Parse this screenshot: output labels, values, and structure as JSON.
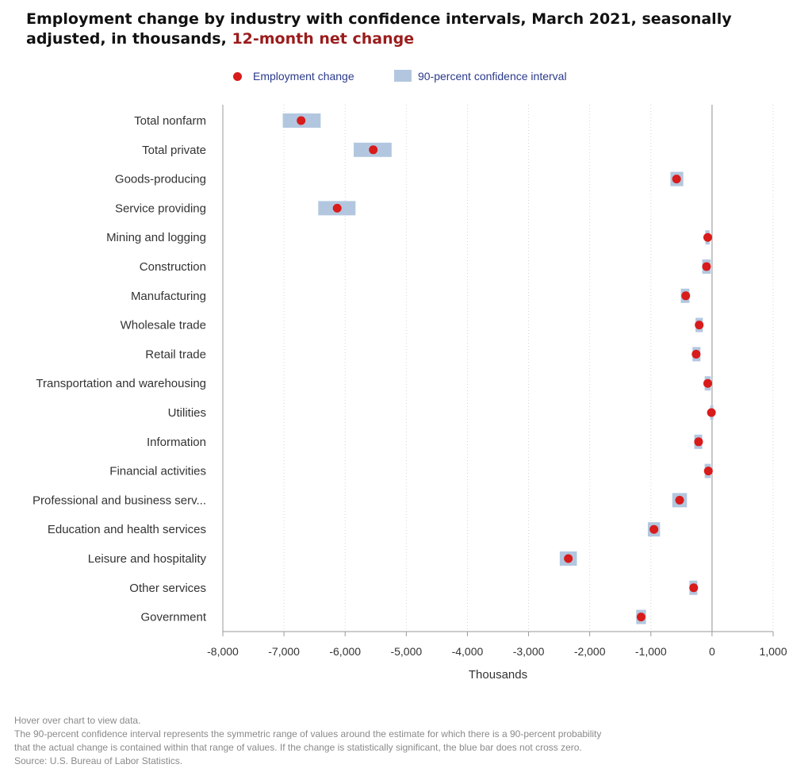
{
  "title": {
    "main": "Employment change by industry with confidence intervals, March 2021, seasonally adjusted, in thousands,",
    "highlight": "12-month net change"
  },
  "legend": {
    "point_label": "Employment change",
    "interval_label": "90-percent confidence interval"
  },
  "colors": {
    "point": "#d81b1b",
    "interval": "#b2c7df",
    "highlight": "#9b1c1c"
  },
  "chart_data": {
    "type": "scatter",
    "title": "Employment change by industry with confidence intervals, March 2021, seasonally adjusted, in thousands, 12-month net change",
    "xlabel": "Thousands",
    "ylabel": "",
    "xlim": [
      -8000,
      1000
    ],
    "xticks": [
      -8000,
      -7000,
      -6000,
      -5000,
      -4000,
      -3000,
      -2000,
      -1000,
      0,
      1000
    ],
    "xtick_labels": [
      "-8,000",
      "-7,000",
      "-6,000",
      "-5,000",
      "-4,000",
      "-3,000",
      "-2,000",
      "-1,000",
      "0",
      "1,000"
    ],
    "grid": "vertical dotted",
    "legend_position": "top-center",
    "categories": [
      "Total nonfarm",
      "Total private",
      "Goods-producing",
      "Service providing",
      "Mining and logging",
      "Construction",
      "Manufacturing",
      "Wholesale trade",
      "Retail trade",
      "Transportation and warehousing",
      "Utilities",
      "Information",
      "Financial activities",
      "Professional and business serv...",
      "Education and health services",
      "Leisure and hospitality",
      "Other services",
      "Government"
    ],
    "series": [
      {
        "name": "Employment change",
        "values": [
          -6720,
          -5540,
          -580,
          -6130,
          -70,
          -90,
          -430,
          -210,
          -260,
          -70,
          -10,
          -220,
          -60,
          -530,
          -950,
          -2350,
          -300,
          -1160
        ]
      },
      {
        "name": "90-percent confidence interval",
        "lower": [
          -7020,
          -5860,
          -680,
          -6440,
          -110,
          -160,
          -510,
          -270,
          -320,
          -120,
          -30,
          -290,
          -120,
          -650,
          -1050,
          -2490,
          -370,
          -1240
        ],
        "upper": [
          -6400,
          -5240,
          -470,
          -5830,
          -40,
          -20,
          -370,
          -150,
          -190,
          -20,
          5,
          -160,
          -20,
          -410,
          -850,
          -2210,
          -240,
          -1080
        ]
      }
    ]
  },
  "footnote": {
    "line1": "Hover over chart to view data.",
    "line2": "The 90-percent confidence interval represents the symmetric range of values around the estimate for which there is a 90-percent probability",
    "line3": "that the actual change is contained within that range of values. If the change is statistically significant, the blue bar does not cross zero.",
    "line4": "Source: U.S. Bureau of Labor Statistics."
  }
}
